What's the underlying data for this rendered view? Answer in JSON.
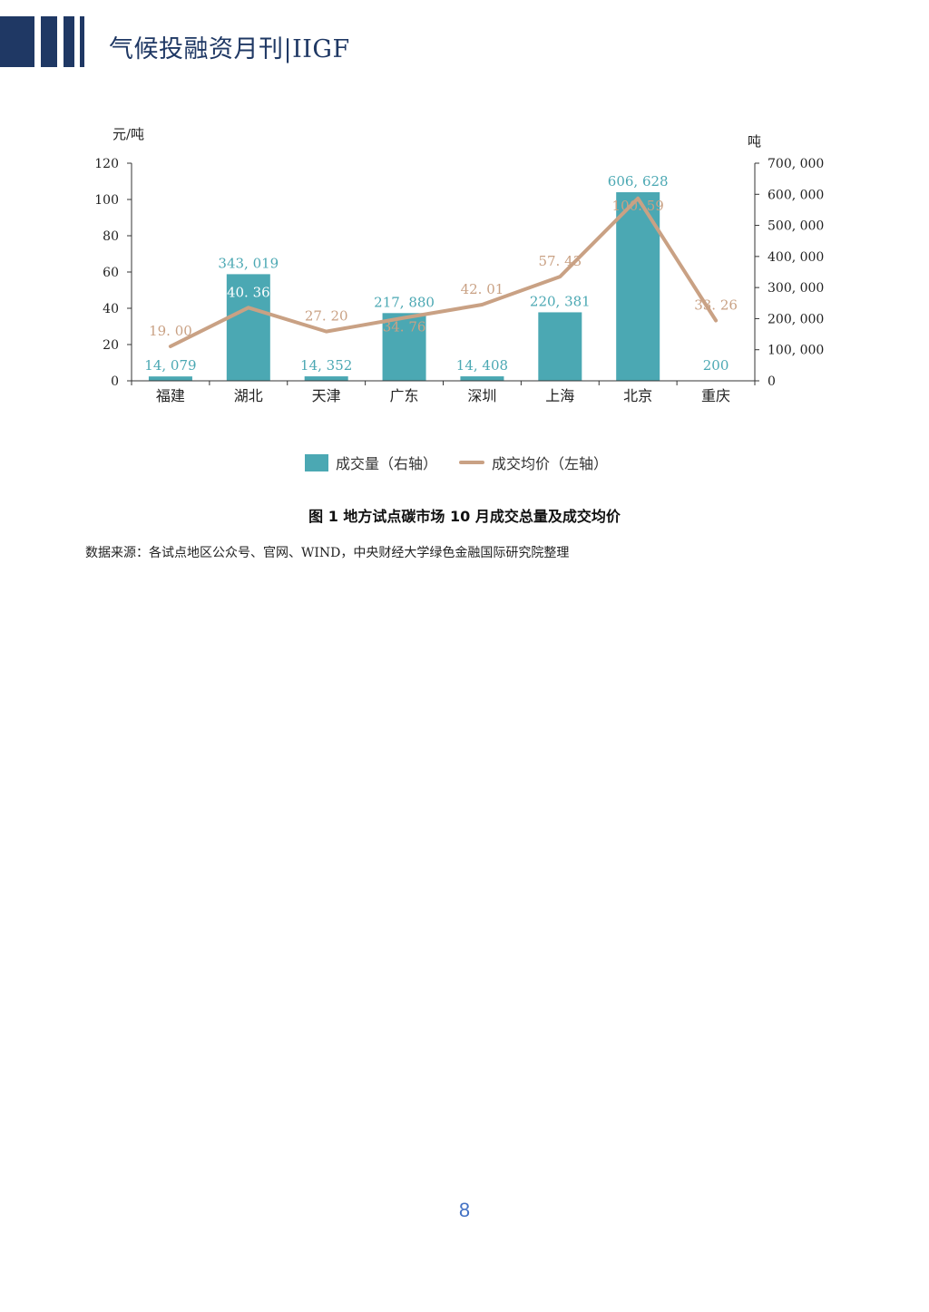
{
  "header": {
    "title": "气候投融资月刊|IIGF",
    "brand_color": "#1f3864"
  },
  "chart_data": {
    "type": "bar",
    "categories": [
      "福建",
      "湖北",
      "天津",
      "广东",
      "深圳",
      "上海",
      "北京",
      "重庆"
    ],
    "series": [
      {
        "name": "成交量（右轴）",
        "type": "bar",
        "axis": "right",
        "color": "#4ba8b3",
        "values": [
          14079,
          343019,
          14352,
          217880,
          14408,
          220381,
          606628,
          200
        ],
        "labels": [
          "14, 079",
          "343, 019",
          "14, 352",
          "217, 880",
          "14, 408",
          "220, 381",
          "606, 628",
          "200"
        ]
      },
      {
        "name": "成交均价（左轴）",
        "type": "line",
        "axis": "left",
        "color": "#c9a184",
        "values": [
          19.0,
          40.36,
          27.2,
          34.76,
          42.01,
          57.43,
          100.59,
          33.26
        ],
        "labels": [
          "19. 00",
          "40. 36",
          "27. 20",
          "34. 76",
          "42. 01",
          "57. 43",
          "100. 59",
          "33. 26"
        ]
      }
    ],
    "y_left": {
      "label": "元/吨",
      "ylim": [
        0,
        120
      ],
      "ticks": [
        0,
        20,
        40,
        60,
        80,
        100,
        120
      ],
      "tick_labels": [
        "0",
        "20",
        "40",
        "60",
        "80",
        "100",
        "120"
      ]
    },
    "y_right": {
      "label": "吨",
      "ylim": [
        0,
        700000
      ],
      "ticks": [
        0,
        100000,
        200000,
        300000,
        400000,
        500000,
        600000,
        700000
      ],
      "tick_labels": [
        "0",
        "100, 000",
        "200, 000",
        "300, 000",
        "400, 000",
        "500, 000",
        "600, 000",
        "700, 000"
      ]
    },
    "grid": false,
    "legend_position": "bottom"
  },
  "legend": {
    "bar_label": "成交量（右轴）",
    "line_label": "成交均价（左轴）"
  },
  "caption": "图 1 地方试点碳市场 10 月成交总量及成交均价",
  "source": "数据来源：各试点地区公众号、官网、WIND，中央财经大学绿色金融国际研究院整理",
  "page_number": "8"
}
